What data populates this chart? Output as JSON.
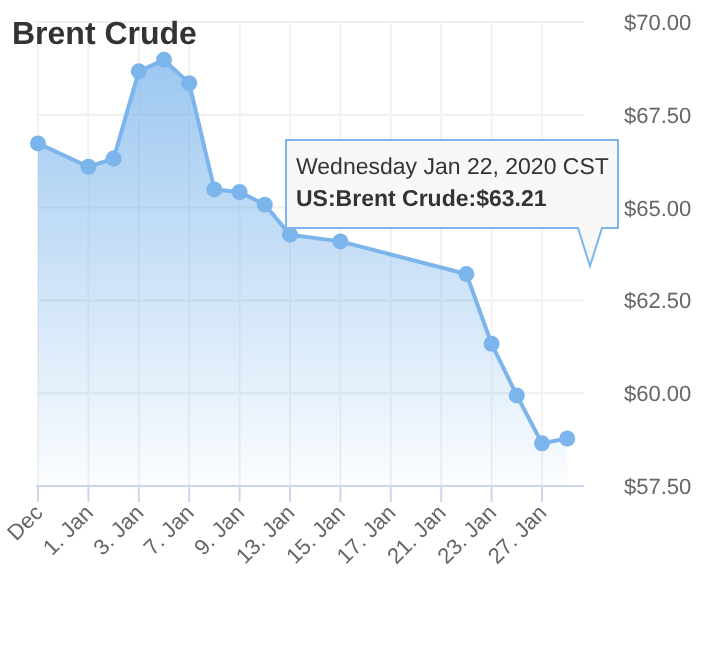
{
  "chart_data": {
    "type": "area",
    "title": "Brent Crude",
    "categories": [
      "Dec",
      null,
      "1. Jan",
      null,
      "3. Jan",
      null,
      "7. Jan",
      null,
      "9. Jan",
      null,
      "13. Jan",
      null,
      "15. Jan",
      null,
      "17. Jan",
      null,
      "21. Jan",
      null,
      "23. Jan",
      null,
      "27. Jan",
      null
    ],
    "series": [
      {
        "color": "#7cb5ec",
        "values": [
          66.73,
          null,
          66.1,
          66.32,
          68.67,
          68.98,
          68.35,
          65.49,
          65.42,
          65.08,
          64.27,
          null,
          64.09,
          null,
          null,
          null,
          null,
          63.21,
          61.33,
          59.94,
          58.65,
          58.78
        ]
      }
    ],
    "ylim": [
      57.5,
      70
    ],
    "yticks": [
      {
        "value": 57.5,
        "label": "$57.50"
      },
      {
        "value": 60,
        "label": "$60.00"
      },
      {
        "value": 62.5,
        "label": "$62.50"
      },
      {
        "value": 65,
        "label": "$65.00"
      },
      {
        "value": 67.5,
        "label": "$67.50"
      },
      {
        "value": 70,
        "label": "$70.00"
      }
    ],
    "grid": true,
    "marker": "circle",
    "annotations": [
      {
        "text": "Wednesday Jan 22, 2020 CST\nUS:Brent Crude:$63.21",
        "y": 63.21
      }
    ]
  }
}
